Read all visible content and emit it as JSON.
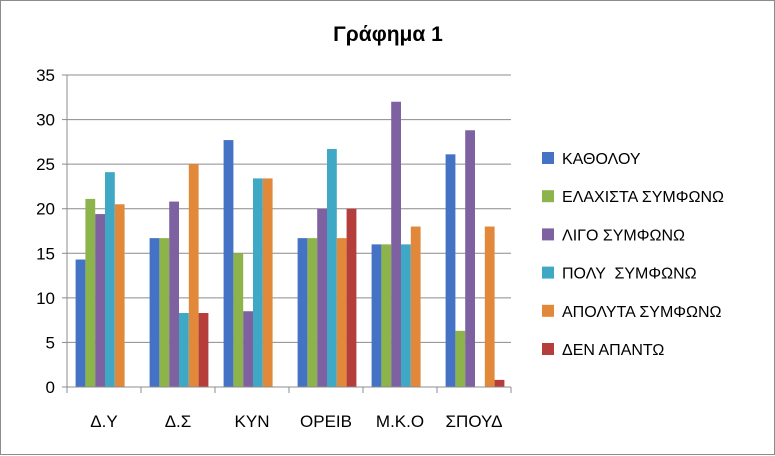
{
  "chart_data": {
    "type": "bar",
    "title": "Γράφημα 1",
    "xlabel": "",
    "ylabel": "",
    "ylim": [
      0,
      35
    ],
    "yticks": [
      0,
      5,
      10,
      15,
      20,
      25,
      30,
      35
    ],
    "grid": true,
    "legend_position": "right",
    "categories": [
      "Δ.Υ",
      "Δ.Σ",
      "ΚΥΝ",
      "ΟΡΕΙΒ",
      "Μ.Κ.Ο",
      "ΣΠΟΥΔ"
    ],
    "series": [
      {
        "name": "ΚΑΘΟΛΟΥ",
        "color": "#4472C4",
        "values": [
          14.3,
          16.7,
          27.7,
          16.7,
          16.0,
          26.1
        ]
      },
      {
        "name": "ΕΛΑΧΙΣΤΑ ΣΥΜΦΩΝΩ",
        "color": "#8DB44A",
        "values": [
          21.1,
          16.7,
          15.0,
          16.7,
          16.0,
          6.3
        ]
      },
      {
        "name": "ΛΙΓΟ ΣΥΜΦΩΝΩ",
        "color": "#7E61A0",
        "values": [
          19.4,
          20.8,
          8.5,
          20.0,
          32.0,
          28.8
        ]
      },
      {
        "name": "ΠΟΛΥ  ΣΥΜΦΩΝΩ",
        "color": "#3FA9C5",
        "values": [
          24.1,
          8.3,
          23.4,
          26.7,
          16.0,
          0
        ]
      },
      {
        "name": "ΑΠΟΛΥΤΑ ΣΥΜΦΩΝΩ",
        "color": "#E2883A",
        "values": [
          20.5,
          25.0,
          23.4,
          16.7,
          18.0,
          18.0
        ]
      },
      {
        "name": "ΔΕΝ ΑΠΑΝΤΩ",
        "color": "#B53D3B",
        "values": [
          0,
          8.3,
          0,
          20.0,
          0,
          0.8
        ]
      }
    ]
  }
}
